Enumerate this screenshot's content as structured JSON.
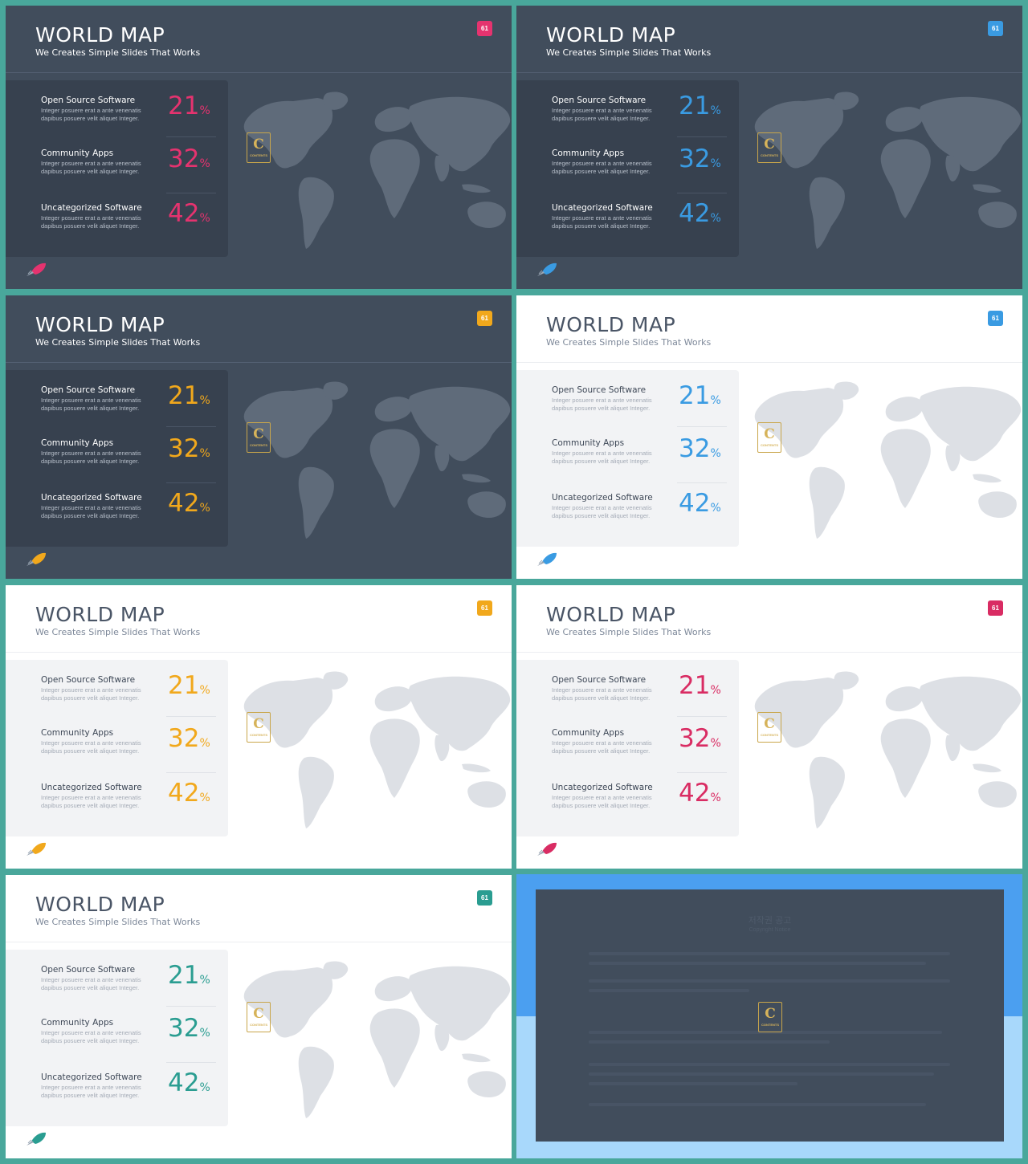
{
  "slides": [
    {
      "theme": "dark",
      "accent": "#e5336f",
      "title": "WORLD MAP",
      "subtitle": "We Creates Simple Slides That Works",
      "page": "61"
    },
    {
      "theme": "dark",
      "accent": "#3a9be2",
      "title": "WORLD MAP",
      "subtitle": "We Creates Simple Slides That Works",
      "page": "61"
    },
    {
      "theme": "dark",
      "accent": "#f1a81c",
      "title": "WORLD MAP",
      "subtitle": "We Creates Simple Slides That Works",
      "page": "61"
    },
    {
      "theme": "light",
      "accent": "#3a9be2",
      "title": "WORLD MAP",
      "subtitle": "We Creates Simple Slides That Works",
      "page": "61"
    },
    {
      "theme": "light",
      "accent": "#f1a81c",
      "title": "WORLD MAP",
      "subtitle": "We Creates Simple Slides That Works",
      "page": "61"
    },
    {
      "theme": "light",
      "accent": "#d92c63",
      "title": "WORLD MAP",
      "subtitle": "We Creates Simple Slides That Works",
      "page": "61"
    },
    {
      "theme": "light",
      "accent": "#2a9d91",
      "title": "WORLD MAP",
      "subtitle": "We Creates Simple Slides That Works",
      "page": "61"
    }
  ],
  "stats": [
    {
      "label": "Open Source Software",
      "desc": "Integer posuere erat a ante venenatis dapibus posuere velit aliquet Integer.",
      "value": "21",
      "unit": "%"
    },
    {
      "label": "Community Apps",
      "desc": "Integer posuere erat a ante venenatis dapibus posuere velit aliquet Integer.",
      "value": "32",
      "unit": "%"
    },
    {
      "label": "Uncategorized Software",
      "desc": "Integer posuere erat a ante venenatis dapibus posuere velit aliquet Integer.",
      "value": "42",
      "unit": "%"
    }
  ],
  "logo": {
    "letter": "C",
    "text": "CONTENTS"
  },
  "notice": {
    "title": "저작권 공고",
    "subtitle": "Copyright Notice"
  },
  "colors": {
    "frame": "#49a79b",
    "dark_bg": "#414d5c",
    "light_bg": "#ffffff",
    "map_dark": "#5f6b7a",
    "map_light": "#dde0e5"
  }
}
